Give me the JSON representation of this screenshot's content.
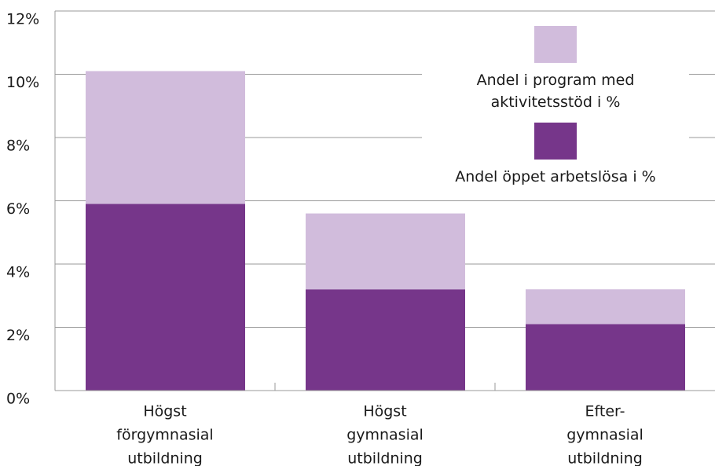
{
  "chart_data": {
    "type": "stacked_bar",
    "categories": [
      [
        "Högst",
        "förgymnasial",
        "utbildning"
      ],
      [
        "Högst",
        "gymnasial",
        "utbildning"
      ],
      [
        "Efter-",
        "gymnasial",
        "utbildning"
      ]
    ],
    "series": [
      {
        "name": "Andel öppet arbetslösa i %",
        "color": "#76368a",
        "values": [
          5.9,
          3.2,
          2.1
        ]
      },
      {
        "name": "Andel i program med aktivitetsstöd i %",
        "color": "#d1bcdc",
        "values": [
          4.2,
          2.4,
          1.1
        ]
      }
    ],
    "ylim": [
      0,
      12
    ],
    "yticks": [
      {
        "value": 0,
        "label": "0%"
      },
      {
        "value": 2,
        "label": "2%"
      },
      {
        "value": 4,
        "label": "4%"
      },
      {
        "value": 6,
        "label": "6%"
      },
      {
        "value": 8,
        "label": "8%"
      },
      {
        "value": 10,
        "label": "10%"
      },
      {
        "value": 12,
        "label": "12%"
      }
    ],
    "grid": true,
    "legend": "upper right"
  }
}
